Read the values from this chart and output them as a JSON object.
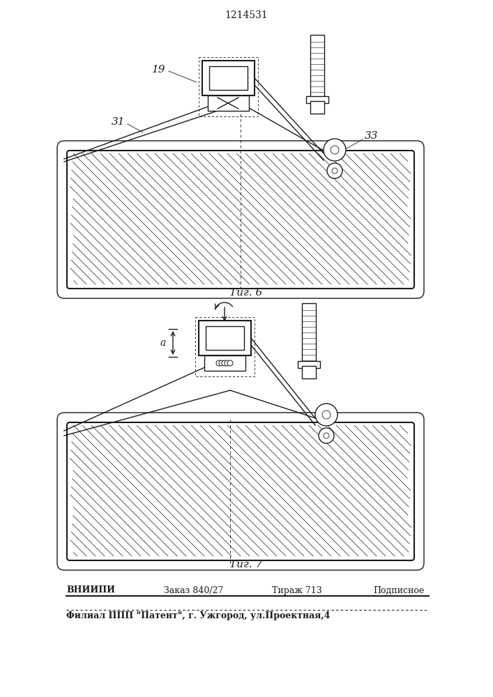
{
  "title": "1214531",
  "fig6_label": "Τиг. 6",
  "fig7_label": "Τиг. 7",
  "footer_line1_parts": [
    "ВНИИПИ",
    "Заказ 840/27",
    "Тираж 713",
    "Подписное"
  ],
  "footer_line2": "Филиал ППП \"Патент\", г. Ужгород, ул.Проектная,4",
  "label_19": "19",
  "label_31": "31",
  "label_33": "33",
  "label_a": "a",
  "bg_color": "#ffffff",
  "line_color": "#1a1a1a"
}
